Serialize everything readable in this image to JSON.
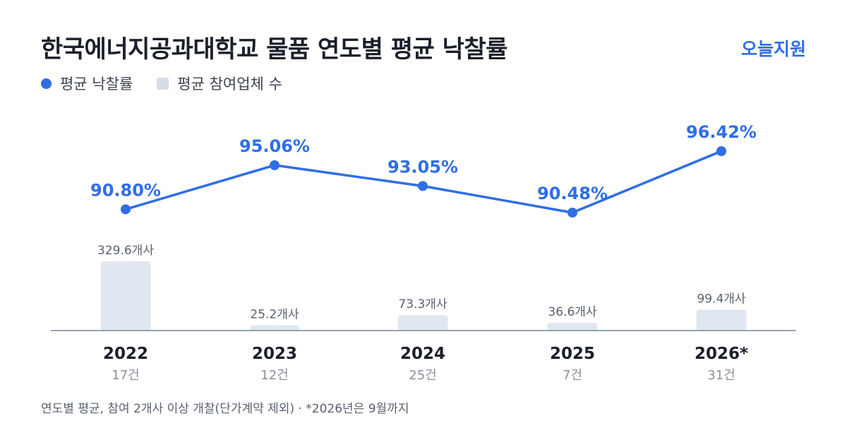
{
  "header": {
    "title": "한국에너지공과대학교 물품 연도별 평균 낙찰률",
    "brand": "오늘지원"
  },
  "legend": {
    "line_label": "평균 낙찰률",
    "bar_label": "평균 참여업체 수"
  },
  "colors": {
    "line": "#2f6ee5",
    "bar": "#e1e7f0",
    "axis": "#7d8596"
  },
  "chart_data": {
    "type": "bar",
    "categories": [
      "2022",
      "2023",
      "2024",
      "2025",
      "2026*"
    ],
    "counts": [
      "17건",
      "12건",
      "25건",
      "7건",
      "31건"
    ],
    "series": [
      {
        "name": "평균 낙찰률",
        "type": "line",
        "values": [
          90.8,
          95.06,
          93.05,
          90.48,
          96.42
        ],
        "labels": [
          "90.80%",
          "95.06%",
          "93.05%",
          "90.48%",
          "96.42%"
        ]
      },
      {
        "name": "평균 참여업체 수",
        "type": "bar",
        "values": [
          329.6,
          25.2,
          73.3,
          36.6,
          99.4
        ],
        "labels": [
          "329.6개사",
          "25.2개사",
          "73.3개사",
          "36.6개사",
          "99.4개사"
        ]
      }
    ]
  },
  "footnote": "연도별 평균, 참여 2개사 이상 개찰(단가계약 제외) · *2026년은 9월까지"
}
